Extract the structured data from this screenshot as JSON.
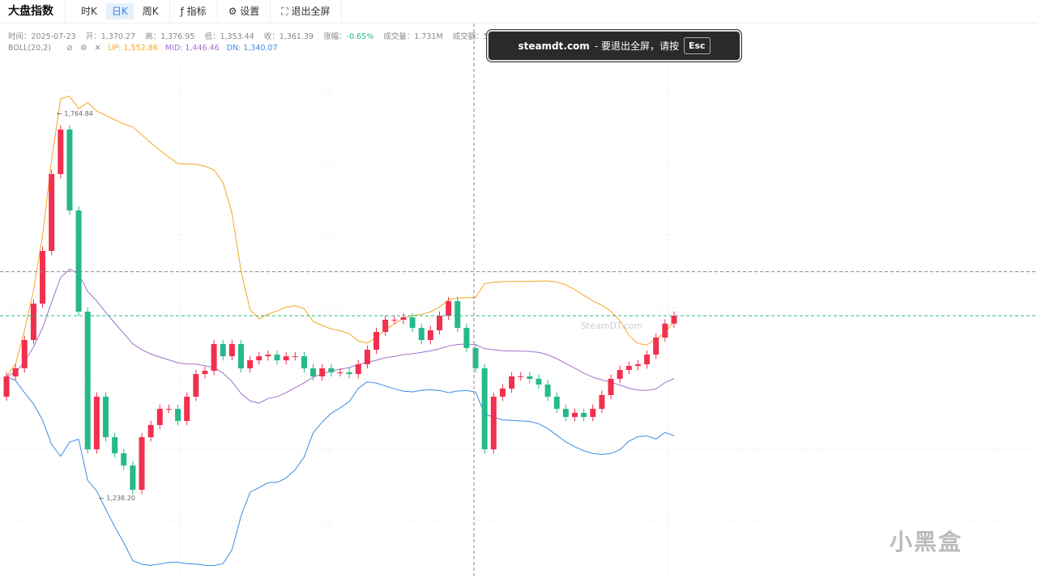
{
  "toolbar": {
    "title": "大盘指数",
    "tabs": [
      "时K",
      "日K",
      "周K"
    ],
    "active_tab": "日K",
    "indicator": "指标",
    "settings": "设置",
    "exit_fullscreen": "退出全屏"
  },
  "info": {
    "time": "时间：2025-07-23",
    "open": "开：1,370.27",
    "high": "高：1,376.95",
    "low": "低：1,353.44",
    "close": "收：1,361.39",
    "change_label": "涨幅：",
    "change": "-0.65%",
    "volume": "成交量：1.731M",
    "amount": "成交额：5"
  },
  "boll": {
    "label": "BOLL(20,2)",
    "up": "UP: 1,552.86",
    "mid": "MID: 1,446.46",
    "dn": "DN: 1,340.07"
  },
  "toast": {
    "site": "steamdt.com",
    "text": "- 要退出全屏，请按",
    "key": "Esc"
  },
  "watermark": "SteamDT.com",
  "logo": "小黑盒",
  "colors": {
    "up": "#f0304e",
    "down": "#26b98a",
    "boll_up": "#f5a623",
    "boll_mid": "#a070c8",
    "boll_dn": "#3b8ce8"
  },
  "chart_data": {
    "type": "candlestick",
    "max_label": "1,764.84",
    "min_label": "1,238.20",
    "max": 1764.84,
    "min": 1238.2,
    "first_open": 1371.6,
    "closes": [
      1399.9,
      1411.2,
      1450.7,
      1501.5,
      1575,
      1682.3,
      1744.5,
      1631.5,
      1490.2,
      1298.1,
      1371.6,
      1315,
      1292.5,
      1275.5,
      1241.6,
      1315,
      1332,
      1354.6,
      1354.6,
      1337.7,
      1371.6,
      1403.2,
      1407.7,
      1445,
      1428,
      1445,
      1411.2,
      1422.4,
      1428,
      1430.3,
      1422.4,
      1428,
      1428,
      1411.2,
      1399.9,
      1411.2,
      1405.5,
      1405.5,
      1403.2,
      1416.8,
      1437.1,
      1462,
      1479,
      1479,
      1482.3,
      1467.6,
      1450.7,
      1464.3,
      1484.6,
      1504.9,
      1467.6,
      1439.4,
      1411.2,
      1298.1,
      1371.6,
      1382.9,
      1399.9,
      1399.9,
      1396.5,
      1388.5,
      1371.6,
      1354.6,
      1343.3,
      1349,
      1343.3,
      1354.6,
      1373.9,
      1396.5,
      1408.9,
      1414.5,
      1416.8,
      1430.3,
      1454.1,
      1473.6,
      1484.6
    ],
    "last_price": 1484.6,
    "crosshair_price": 1546
  }
}
